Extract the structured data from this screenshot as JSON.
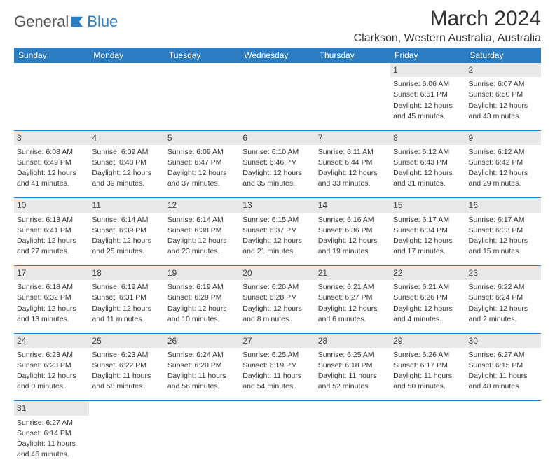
{
  "logo": {
    "part1": "General",
    "part2": "Blue"
  },
  "title": "March 2024",
  "location": "Clarkson, Western Australia, Australia",
  "colors": {
    "header_bg": "#2b7cc0",
    "header_text": "#ffffff",
    "daynum_bg": "#e8e8e8",
    "row_divider": "#2b7cc0",
    "logo_blue": "#2b7cc0",
    "logo_gray": "#555555"
  },
  "weekdays": [
    "Sunday",
    "Monday",
    "Tuesday",
    "Wednesday",
    "Thursday",
    "Friday",
    "Saturday"
  ],
  "weeks": [
    [
      null,
      null,
      null,
      null,
      null,
      {
        "n": "1",
        "sunrise": "Sunrise: 6:06 AM",
        "sunset": "Sunset: 6:51 PM",
        "day1": "Daylight: 12 hours",
        "day2": "and 45 minutes."
      },
      {
        "n": "2",
        "sunrise": "Sunrise: 6:07 AM",
        "sunset": "Sunset: 6:50 PM",
        "day1": "Daylight: 12 hours",
        "day2": "and 43 minutes."
      }
    ],
    [
      {
        "n": "3",
        "sunrise": "Sunrise: 6:08 AM",
        "sunset": "Sunset: 6:49 PM",
        "day1": "Daylight: 12 hours",
        "day2": "and 41 minutes."
      },
      {
        "n": "4",
        "sunrise": "Sunrise: 6:09 AM",
        "sunset": "Sunset: 6:48 PM",
        "day1": "Daylight: 12 hours",
        "day2": "and 39 minutes."
      },
      {
        "n": "5",
        "sunrise": "Sunrise: 6:09 AM",
        "sunset": "Sunset: 6:47 PM",
        "day1": "Daylight: 12 hours",
        "day2": "and 37 minutes."
      },
      {
        "n": "6",
        "sunrise": "Sunrise: 6:10 AM",
        "sunset": "Sunset: 6:46 PM",
        "day1": "Daylight: 12 hours",
        "day2": "and 35 minutes."
      },
      {
        "n": "7",
        "sunrise": "Sunrise: 6:11 AM",
        "sunset": "Sunset: 6:44 PM",
        "day1": "Daylight: 12 hours",
        "day2": "and 33 minutes."
      },
      {
        "n": "8",
        "sunrise": "Sunrise: 6:12 AM",
        "sunset": "Sunset: 6:43 PM",
        "day1": "Daylight: 12 hours",
        "day2": "and 31 minutes."
      },
      {
        "n": "9",
        "sunrise": "Sunrise: 6:12 AM",
        "sunset": "Sunset: 6:42 PM",
        "day1": "Daylight: 12 hours",
        "day2": "and 29 minutes."
      }
    ],
    [
      {
        "n": "10",
        "sunrise": "Sunrise: 6:13 AM",
        "sunset": "Sunset: 6:41 PM",
        "day1": "Daylight: 12 hours",
        "day2": "and 27 minutes."
      },
      {
        "n": "11",
        "sunrise": "Sunrise: 6:14 AM",
        "sunset": "Sunset: 6:39 PM",
        "day1": "Daylight: 12 hours",
        "day2": "and 25 minutes."
      },
      {
        "n": "12",
        "sunrise": "Sunrise: 6:14 AM",
        "sunset": "Sunset: 6:38 PM",
        "day1": "Daylight: 12 hours",
        "day2": "and 23 minutes."
      },
      {
        "n": "13",
        "sunrise": "Sunrise: 6:15 AM",
        "sunset": "Sunset: 6:37 PM",
        "day1": "Daylight: 12 hours",
        "day2": "and 21 minutes."
      },
      {
        "n": "14",
        "sunrise": "Sunrise: 6:16 AM",
        "sunset": "Sunset: 6:36 PM",
        "day1": "Daylight: 12 hours",
        "day2": "and 19 minutes."
      },
      {
        "n": "15",
        "sunrise": "Sunrise: 6:17 AM",
        "sunset": "Sunset: 6:34 PM",
        "day1": "Daylight: 12 hours",
        "day2": "and 17 minutes."
      },
      {
        "n": "16",
        "sunrise": "Sunrise: 6:17 AM",
        "sunset": "Sunset: 6:33 PM",
        "day1": "Daylight: 12 hours",
        "day2": "and 15 minutes."
      }
    ],
    [
      {
        "n": "17",
        "sunrise": "Sunrise: 6:18 AM",
        "sunset": "Sunset: 6:32 PM",
        "day1": "Daylight: 12 hours",
        "day2": "and 13 minutes."
      },
      {
        "n": "18",
        "sunrise": "Sunrise: 6:19 AM",
        "sunset": "Sunset: 6:31 PM",
        "day1": "Daylight: 12 hours",
        "day2": "and 11 minutes."
      },
      {
        "n": "19",
        "sunrise": "Sunrise: 6:19 AM",
        "sunset": "Sunset: 6:29 PM",
        "day1": "Daylight: 12 hours",
        "day2": "and 10 minutes."
      },
      {
        "n": "20",
        "sunrise": "Sunrise: 6:20 AM",
        "sunset": "Sunset: 6:28 PM",
        "day1": "Daylight: 12 hours",
        "day2": "and 8 minutes."
      },
      {
        "n": "21",
        "sunrise": "Sunrise: 6:21 AM",
        "sunset": "Sunset: 6:27 PM",
        "day1": "Daylight: 12 hours",
        "day2": "and 6 minutes."
      },
      {
        "n": "22",
        "sunrise": "Sunrise: 6:21 AM",
        "sunset": "Sunset: 6:26 PM",
        "day1": "Daylight: 12 hours",
        "day2": "and 4 minutes."
      },
      {
        "n": "23",
        "sunrise": "Sunrise: 6:22 AM",
        "sunset": "Sunset: 6:24 PM",
        "day1": "Daylight: 12 hours",
        "day2": "and 2 minutes."
      }
    ],
    [
      {
        "n": "24",
        "sunrise": "Sunrise: 6:23 AM",
        "sunset": "Sunset: 6:23 PM",
        "day1": "Daylight: 12 hours",
        "day2": "and 0 minutes."
      },
      {
        "n": "25",
        "sunrise": "Sunrise: 6:23 AM",
        "sunset": "Sunset: 6:22 PM",
        "day1": "Daylight: 11 hours",
        "day2": "and 58 minutes."
      },
      {
        "n": "26",
        "sunrise": "Sunrise: 6:24 AM",
        "sunset": "Sunset: 6:20 PM",
        "day1": "Daylight: 11 hours",
        "day2": "and 56 minutes."
      },
      {
        "n": "27",
        "sunrise": "Sunrise: 6:25 AM",
        "sunset": "Sunset: 6:19 PM",
        "day1": "Daylight: 11 hours",
        "day2": "and 54 minutes."
      },
      {
        "n": "28",
        "sunrise": "Sunrise: 6:25 AM",
        "sunset": "Sunset: 6:18 PM",
        "day1": "Daylight: 11 hours",
        "day2": "and 52 minutes."
      },
      {
        "n": "29",
        "sunrise": "Sunrise: 6:26 AM",
        "sunset": "Sunset: 6:17 PM",
        "day1": "Daylight: 11 hours",
        "day2": "and 50 minutes."
      },
      {
        "n": "30",
        "sunrise": "Sunrise: 6:27 AM",
        "sunset": "Sunset: 6:15 PM",
        "day1": "Daylight: 11 hours",
        "day2": "and 48 minutes."
      }
    ],
    [
      {
        "n": "31",
        "sunrise": "Sunrise: 6:27 AM",
        "sunset": "Sunset: 6:14 PM",
        "day1": "Daylight: 11 hours",
        "day2": "and 46 minutes."
      },
      null,
      null,
      null,
      null,
      null,
      null
    ]
  ]
}
